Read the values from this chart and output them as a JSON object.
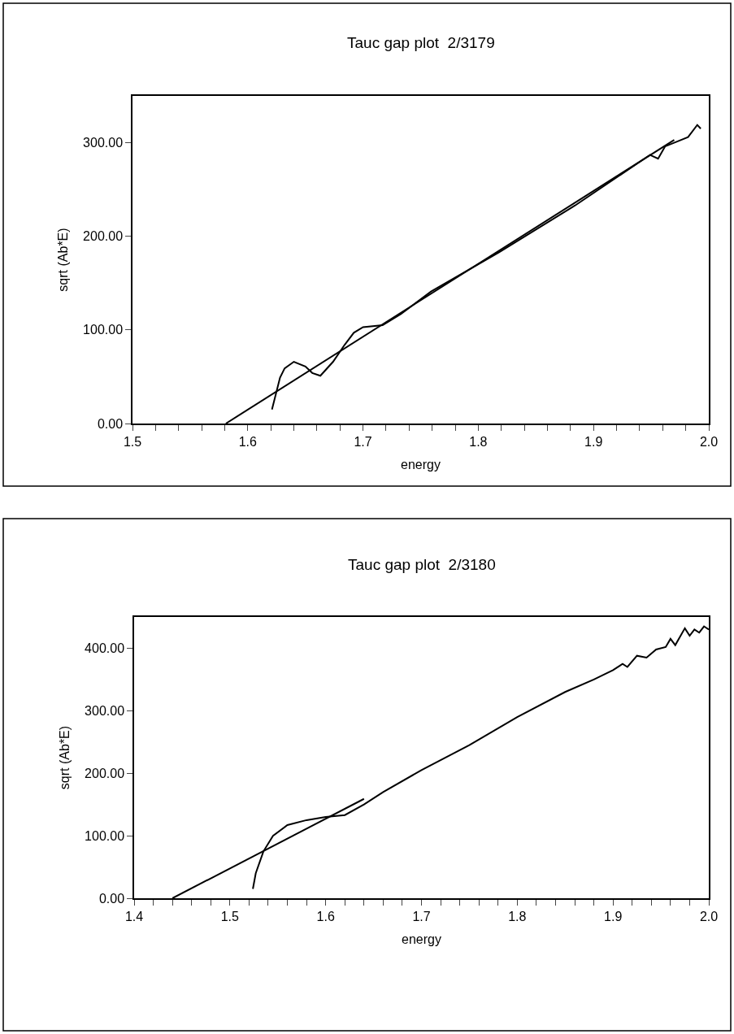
{
  "chart_data": [
    {
      "type": "line",
      "title": "Tauc gap plot  2/3179",
      "xlabel": "energy",
      "ylabel": "sqrt (Ab*E)",
      "xlim": [
        1.5,
        2.0
      ],
      "ylim": [
        0,
        350
      ],
      "xticks": [
        {
          "value": 1.5,
          "label": "1.5"
        },
        {
          "value": 1.52,
          "label": null
        },
        {
          "value": 1.54,
          "label": null
        },
        {
          "value": 1.56,
          "label": null
        },
        {
          "value": 1.58,
          "label": null
        },
        {
          "value": 1.6,
          "label": "1.6"
        },
        {
          "value": 1.62,
          "label": null
        },
        {
          "value": 1.64,
          "label": null
        },
        {
          "value": 1.66,
          "label": null
        },
        {
          "value": 1.68,
          "label": null
        },
        {
          "value": 1.7,
          "label": "1.7"
        },
        {
          "value": 1.72,
          "label": null
        },
        {
          "value": 1.74,
          "label": null
        },
        {
          "value": 1.76,
          "label": null
        },
        {
          "value": 1.78,
          "label": null
        },
        {
          "value": 1.8,
          "label": "1.8"
        },
        {
          "value": 1.82,
          "label": null
        },
        {
          "value": 1.84,
          "label": null
        },
        {
          "value": 1.86,
          "label": null
        },
        {
          "value": 1.88,
          "label": null
        },
        {
          "value": 1.9,
          "label": "1.9"
        },
        {
          "value": 1.92,
          "label": null
        },
        {
          "value": 1.94,
          "label": null
        },
        {
          "value": 1.96,
          "label": null
        },
        {
          "value": 1.98,
          "label": null
        },
        {
          "value": 2.0,
          "label": "2.0"
        }
      ],
      "yticks": [
        {
          "value": 0,
          "label": "0.00"
        },
        {
          "value": 100,
          "label": "100.00"
        },
        {
          "value": 200,
          "label": "200.00"
        },
        {
          "value": 300,
          "label": "300.00"
        }
      ],
      "grid": false,
      "marker": "none",
      "line_style": "solid",
      "series": [
        {
          "color": "#000000",
          "x": [
            1.621,
            1.628,
            1.632,
            1.64,
            1.65,
            1.656,
            1.663,
            1.674,
            1.684,
            1.692,
            1.7,
            1.717,
            1.733,
            1.759,
            1.818,
            1.884,
            1.949,
            1.956,
            1.962,
            1.982,
            1.99,
            1.993
          ],
          "values": [
            15,
            49,
            59,
            66,
            61,
            54,
            51,
            66,
            84,
            97,
            103,
            105,
            117,
            141,
            183,
            233,
            287,
            283,
            296,
            306,
            319,
            315
          ]
        },
        {
          "color": "#000000",
          "x": [
            1.581,
            1.97
          ],
          "values": [
            0,
            303
          ]
        }
      ]
    },
    {
      "type": "line",
      "title": "Tauc gap plot  2/3180",
      "xlabel": "energy",
      "ylabel": "sqrt (Ab*E)",
      "xlim": [
        1.4,
        2.0
      ],
      "ylim": [
        0,
        450
      ],
      "xticks": [
        {
          "value": 1.4,
          "label": "1.4"
        },
        {
          "value": 1.42,
          "label": null
        },
        {
          "value": 1.44,
          "label": null
        },
        {
          "value": 1.46,
          "label": null
        },
        {
          "value": 1.48,
          "label": null
        },
        {
          "value": 1.5,
          "label": "1.5"
        },
        {
          "value": 1.52,
          "label": null
        },
        {
          "value": 1.54,
          "label": null
        },
        {
          "value": 1.56,
          "label": null
        },
        {
          "value": 1.58,
          "label": null
        },
        {
          "value": 1.6,
          "label": "1.6"
        },
        {
          "value": 1.62,
          "label": null
        },
        {
          "value": 1.64,
          "label": null
        },
        {
          "value": 1.66,
          "label": null
        },
        {
          "value": 1.68,
          "label": null
        },
        {
          "value": 1.7,
          "label": "1.7"
        },
        {
          "value": 1.72,
          "label": null
        },
        {
          "value": 1.74,
          "label": null
        },
        {
          "value": 1.76,
          "label": null
        },
        {
          "value": 1.78,
          "label": null
        },
        {
          "value": 1.8,
          "label": "1.8"
        },
        {
          "value": 1.82,
          "label": null
        },
        {
          "value": 1.84,
          "label": null
        },
        {
          "value": 1.86,
          "label": null
        },
        {
          "value": 1.88,
          "label": null
        },
        {
          "value": 1.9,
          "label": "1.9"
        },
        {
          "value": 1.92,
          "label": null
        },
        {
          "value": 1.94,
          "label": null
        },
        {
          "value": 1.96,
          "label": null
        },
        {
          "value": 1.98,
          "label": null
        },
        {
          "value": 2.0,
          "label": "2.0"
        }
      ],
      "yticks": [
        {
          "value": 0,
          "label": "0.00"
        },
        {
          "value": 100,
          "label": "100.00"
        },
        {
          "value": 200,
          "label": "200.00"
        },
        {
          "value": 300,
          "label": "300.00"
        },
        {
          "value": 400,
          "label": "400.00"
        }
      ],
      "grid": false,
      "marker": "none",
      "line_style": "solid",
      "series": [
        {
          "color": "#000000",
          "x": [
            1.524,
            1.527,
            1.535,
            1.545,
            1.56,
            1.58,
            1.6,
            1.62,
            1.64,
            1.66,
            1.7,
            1.75,
            1.8,
            1.85,
            1.88,
            1.9,
            1.91,
            1.915,
            1.925,
            1.935,
            1.945,
            1.955,
            1.96,
            1.965,
            1.975,
            1.98,
            1.985,
            1.99,
            1.995,
            2.0
          ],
          "values": [
            15,
            40,
            75,
            100,
            117,
            125,
            130,
            133,
            150,
            170,
            205,
            245,
            290,
            330,
            350,
            365,
            375,
            370,
            388,
            385,
            398,
            402,
            415,
            405,
            432,
            420,
            430,
            425,
            435,
            430
          ]
        },
        {
          "color": "#000000",
          "x": [
            1.44,
            1.64
          ],
          "values": [
            0,
            159
          ]
        }
      ]
    }
  ]
}
